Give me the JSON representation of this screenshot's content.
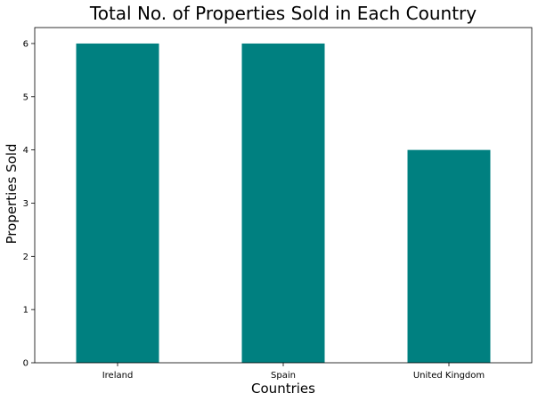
{
  "chart_data": {
    "type": "bar",
    "title": "Total No. of Properties Sold in Each Country",
    "xlabel": "Countries",
    "ylabel": "Properties Sold",
    "categories": [
      "Ireland",
      "Spain",
      "United Kingdom"
    ],
    "values": [
      6,
      6,
      4
    ],
    "ylim": [
      0,
      6.3
    ],
    "yticks": [
      0,
      1,
      2,
      3,
      4,
      5,
      6
    ],
    "grid": false,
    "legend": "none",
    "bar_color": "#008080"
  }
}
